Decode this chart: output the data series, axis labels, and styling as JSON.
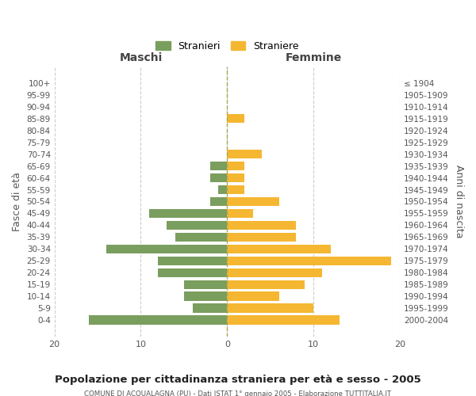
{
  "age_groups": [
    "100+",
    "95-99",
    "90-94",
    "85-89",
    "80-84",
    "75-79",
    "70-74",
    "65-69",
    "60-64",
    "55-59",
    "50-54",
    "45-49",
    "40-44",
    "35-39",
    "30-34",
    "25-29",
    "20-24",
    "15-19",
    "10-14",
    "5-9",
    "0-4"
  ],
  "birth_years": [
    "≤ 1904",
    "1905-1909",
    "1910-1914",
    "1915-1919",
    "1920-1924",
    "1925-1929",
    "1930-1934",
    "1935-1939",
    "1940-1944",
    "1945-1949",
    "1950-1954",
    "1955-1959",
    "1960-1964",
    "1965-1969",
    "1970-1974",
    "1975-1979",
    "1980-1984",
    "1985-1989",
    "1990-1994",
    "1995-1999",
    "2000-2004"
  ],
  "maschi": [
    0,
    0,
    0,
    0,
    0,
    0,
    0,
    2,
    2,
    1,
    2,
    9,
    7,
    6,
    14,
    8,
    8,
    5,
    5,
    4,
    16
  ],
  "femmine": [
    0,
    0,
    0,
    2,
    0,
    0,
    4,
    2,
    2,
    2,
    6,
    3,
    8,
    8,
    12,
    19,
    11,
    9,
    6,
    10,
    13
  ],
  "maschi_color": "#7a9e5e",
  "femmine_color": "#f5b731",
  "background_color": "#ffffff",
  "grid_color": "#cccccc",
  "title": "Popolazione per cittadinanza straniera per età e sesso - 2005",
  "subtitle": "COMUNE DI ACQUALAGNA (PU) - Dati ISTAT 1° gennaio 2005 - Elaborazione TUTTITALIA.IT",
  "ylabel_left": "Fasce di età",
  "ylabel_right": "Anni di nascita",
  "xlabel_left": "Maschi",
  "xlabel_right": "Femmine",
  "legend_stranieri": "Stranieri",
  "legend_straniere": "Straniere",
  "xlim": 20,
  "bar_height": 0.75
}
